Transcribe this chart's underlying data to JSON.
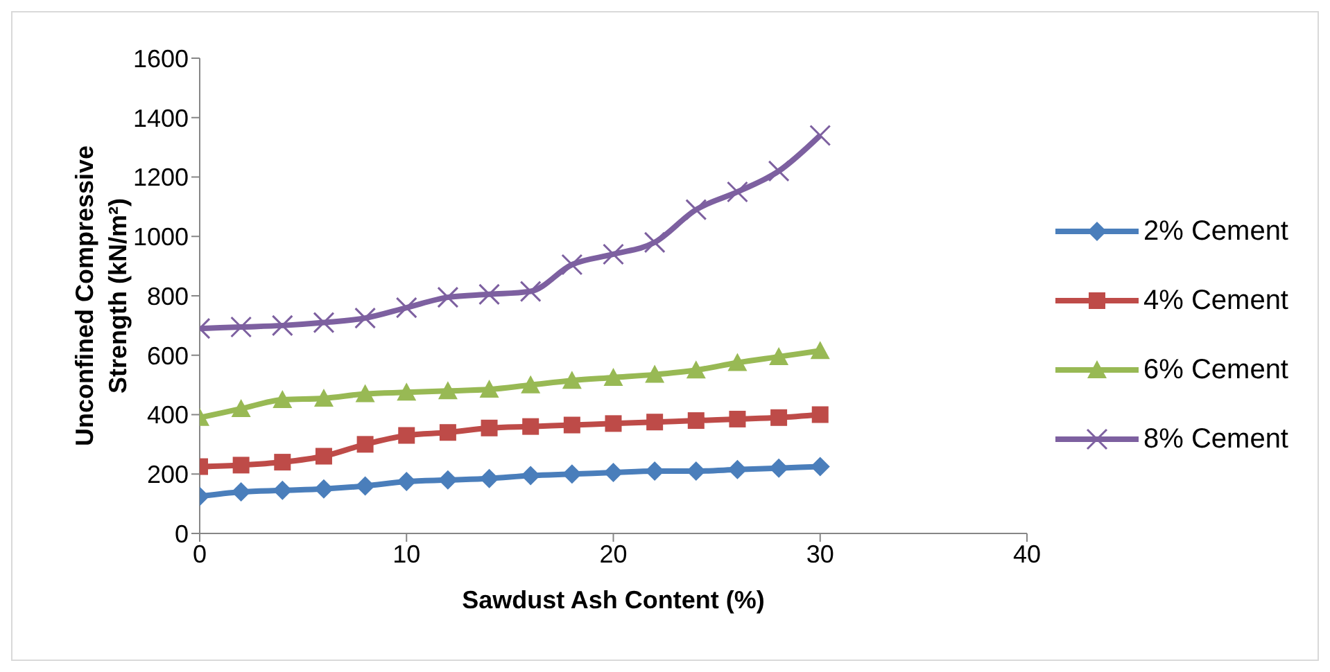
{
  "chart_data": {
    "type": "line",
    "xlabel": "Sawdust Ash Content (%)",
    "ylabel": "Unconfined Compressive Strength (kN/m²)",
    "x": [
      0,
      2,
      4,
      6,
      8,
      10,
      12,
      14,
      16,
      18,
      20,
      22,
      24,
      26,
      28,
      30
    ],
    "series": [
      {
        "name": "2% Cement",
        "color": "#4a7ebb",
        "marker": "diamond",
        "values": [
          125,
          140,
          145,
          150,
          160,
          175,
          180,
          185,
          195,
          200,
          205,
          210,
          210,
          215,
          220,
          225
        ]
      },
      {
        "name": "4% Cement",
        "color": "#be4b48",
        "marker": "square",
        "values": [
          225,
          230,
          240,
          260,
          300,
          330,
          340,
          355,
          360,
          365,
          370,
          375,
          380,
          385,
          390,
          400
        ]
      },
      {
        "name": "6% Cement",
        "color": "#98b954",
        "marker": "triangle",
        "values": [
          390,
          420,
          450,
          455,
          470,
          475,
          480,
          485,
          500,
          515,
          525,
          535,
          550,
          575,
          595,
          615
        ]
      },
      {
        "name": "8% Cement",
        "color": "#7d60a0",
        "marker": "cross",
        "values": [
          690,
          695,
          700,
          710,
          725,
          760,
          795,
          805,
          815,
          905,
          940,
          980,
          1090,
          1150,
          1220,
          1340
        ]
      }
    ],
    "xlim": [
      0,
      40
    ],
    "xticks": [
      0,
      10,
      20,
      30,
      40
    ],
    "ylim": [
      0,
      1600
    ],
    "yticks": [
      0,
      200,
      400,
      600,
      800,
      1000,
      1200,
      1400,
      1600
    ],
    "grid": false,
    "legend": "right"
  }
}
